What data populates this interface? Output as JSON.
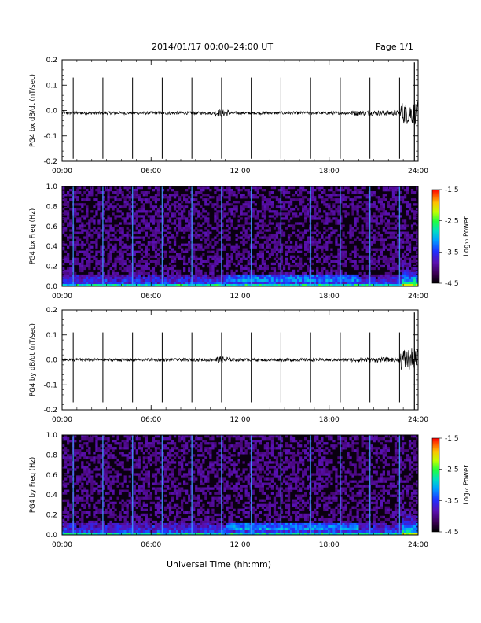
{
  "header": {
    "title": "2014/01/17  00:00–24:00 UT",
    "page": "Page 1/1"
  },
  "xaxis": {
    "ticks": [
      "00:00",
      "06:00",
      "12:00",
      "18:00",
      "24:00"
    ],
    "label": "Universal Time (hh:mm)"
  },
  "colorbar": {
    "ticks": [
      "-1.5",
      "-2.5",
      "-3.5",
      "-4.5"
    ],
    "label": "Log₁₀ Power"
  },
  "chart_data": [
    {
      "type": "line",
      "ylabel": "PG4 bx dB/dt (nT/sec)",
      "ylim": [
        -0.2,
        0.2
      ],
      "yticks": [
        "0.2",
        "0.1",
        "0.0",
        "-0.1",
        "-0.2"
      ],
      "xlim": [
        0,
        24
      ],
      "spike_times_hr": [
        0.75,
        2.75,
        4.75,
        6.75,
        8.75,
        10.75,
        12.75,
        14.75,
        16.75,
        18.75,
        20.75,
        22.75
      ],
      "spike_max": 0.13,
      "spike_min": -0.19,
      "baseline": -0.01
    },
    {
      "type": "heatmap",
      "ylabel": "PG4 bx Freq (Hz)",
      "ylim": [
        0,
        1.0
      ],
      "yticks": [
        "1.0",
        "0.8",
        "0.6",
        "0.4",
        "0.2",
        "0.0"
      ],
      "xlim": [
        0,
        24
      ],
      "zlim": [
        -4.5,
        -1.5
      ]
    },
    {
      "type": "line",
      "ylabel": "PG4 by dB/dt (nT/sec)",
      "ylim": [
        -0.2,
        0.2
      ],
      "yticks": [
        "0.2",
        "0.1",
        "0.0",
        "-0.1",
        "-0.2"
      ],
      "xlim": [
        0,
        24
      ],
      "spike_times_hr": [
        0.75,
        2.75,
        4.75,
        6.75,
        8.75,
        10.75,
        12.75,
        14.75,
        16.75,
        18.75,
        20.75,
        22.75
      ],
      "spike_max": 0.11,
      "spike_min": -0.17,
      "baseline": 0.0
    },
    {
      "type": "heatmap",
      "ylabel": "PG4 by Freq (Hz)",
      "ylim": [
        0,
        1.0
      ],
      "yticks": [
        "1.0",
        "0.8",
        "0.6",
        "0.4",
        "0.2",
        "0.0"
      ],
      "xlim": [
        0,
        24
      ],
      "zlim": [
        -4.5,
        -1.5
      ]
    }
  ]
}
